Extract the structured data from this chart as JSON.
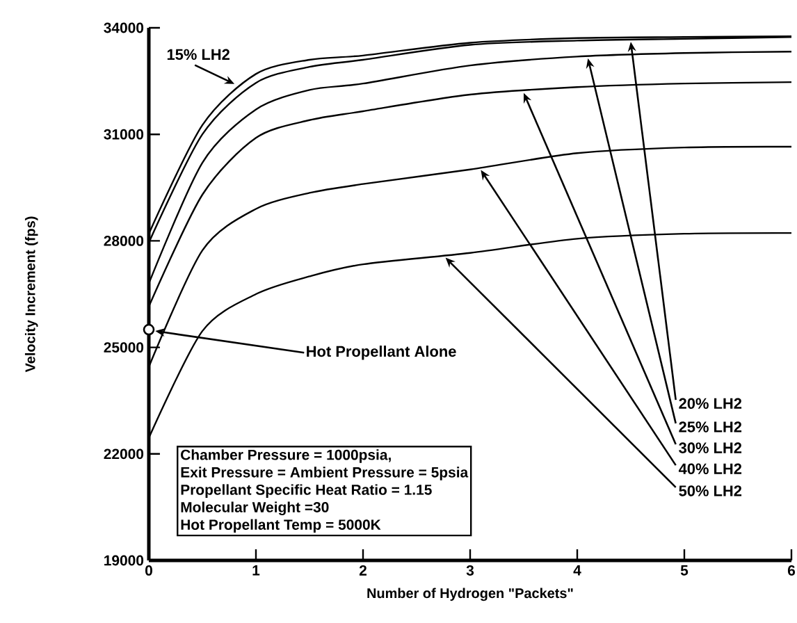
{
  "chart_data": {
    "type": "line",
    "xlabel": "Number of Hydrogen \"Packets\"",
    "ylabel": "Velocity Increment (fps)",
    "x": [
      0,
      0.5,
      1,
      1.5,
      2,
      3,
      4,
      5,
      6
    ],
    "series": [
      {
        "name": "15% LH2",
        "color": "#000000",
        "values": [
          28200,
          31260,
          32700,
          33100,
          33220,
          33580,
          33710,
          33740,
          33760
        ]
      },
      {
        "name": "20% LH2",
        "color": "#000000",
        "values": [
          27950,
          31000,
          32450,
          32900,
          33100,
          33520,
          33640,
          33690,
          33740
        ]
      },
      {
        "name": "25% LH2",
        "color": "#000000",
        "values": [
          26800,
          30200,
          31700,
          32250,
          32430,
          32940,
          33190,
          33290,
          33330
        ]
      },
      {
        "name": "30% LH2",
        "color": "#000000",
        "values": [
          26150,
          29300,
          30900,
          31400,
          31650,
          32120,
          32330,
          32430,
          32470
        ]
      },
      {
        "name": "40% LH2",
        "color": "#000000",
        "values": [
          24450,
          27730,
          28900,
          29350,
          29600,
          30010,
          30470,
          30630,
          30650
        ]
      },
      {
        "name": "50% LH2",
        "color": "#000000",
        "values": [
          22450,
          25460,
          26500,
          27000,
          27340,
          27660,
          28060,
          28200,
          28220
        ]
      }
    ],
    "xlim": [
      0,
      6
    ],
    "ylim": [
      19000,
      34000
    ],
    "xticks": [
      0,
      1,
      2,
      3,
      4,
      5,
      6
    ],
    "yticks": [
      19000,
      22000,
      25000,
      28000,
      31000,
      34000
    ],
    "line_style": "solid",
    "marker": "none",
    "annotations": [
      {
        "text": "Hot Propellant Alone",
        "x": 0,
        "y": 25500
      },
      "Chamber Pressure = 1000psia,",
      "Exit Pressure = Ambient Pressure = 5psia",
      "Propellant Specific Heat Ratio = 1.15",
      "Molecular Weight =30",
      "Hot Propellant Temp = 5000K"
    ]
  }
}
